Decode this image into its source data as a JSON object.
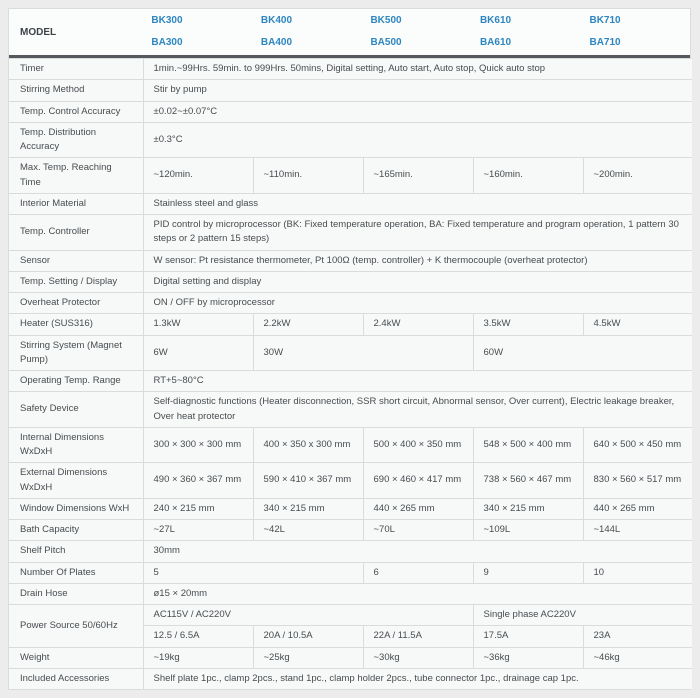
{
  "colors": {
    "accent_blue": "#2e86c1",
    "header_bottom_border": "#55585c",
    "cell_border": "#d9dcdc",
    "cell_background": "#f7f8f8",
    "page_background": "#ebeceb",
    "text": "#474d50"
  },
  "header": {
    "row_label": "MODEL",
    "models": [
      {
        "top": "BK300",
        "bottom": "BA300"
      },
      {
        "top": "BK400",
        "bottom": "BA400"
      },
      {
        "top": "BK500",
        "bottom": "BA500"
      },
      {
        "top": "BK610",
        "bottom": "BA610"
      },
      {
        "top": "BK710",
        "bottom": "BA710"
      }
    ]
  },
  "spec_rows": [
    {
      "label": "Timer",
      "cells": [
        {
          "text": "1min.~99Hrs. 59min. to 999Hrs. 50mins, Digital setting, Auto start, Auto stop, Quick auto stop",
          "span": 5
        }
      ]
    },
    {
      "label": "Stirring Method",
      "cells": [
        {
          "text": "Stir by pump",
          "span": 5
        }
      ]
    },
    {
      "label": "Temp. Control Accuracy",
      "cells": [
        {
          "text": "±0.02~±0.07°C",
          "span": 5
        }
      ]
    },
    {
      "label": "Temp. Distribution Accuracy",
      "cells": [
        {
          "text": "±0.3°C",
          "span": 5
        }
      ]
    },
    {
      "label": "Max. Temp. Reaching Time",
      "cells": [
        {
          "text": "~120min.",
          "span": 1
        },
        {
          "text": "~110min.",
          "span": 1
        },
        {
          "text": "~165min.",
          "span": 1
        },
        {
          "text": "~160min.",
          "span": 1
        },
        {
          "text": "~200min.",
          "span": 1
        }
      ]
    },
    {
      "label": "Interior Material",
      "cells": [
        {
          "text": "Stainless steel and glass",
          "span": 5
        }
      ]
    },
    {
      "label": "Temp. Controller",
      "cells": [
        {
          "text": "PID control by microprocessor (BK: Fixed temperature operation, BA: Fixed temperature and program operation, 1 pattern 30 steps or 2 pattern 15 steps)",
          "span": 5
        }
      ]
    },
    {
      "label": "Sensor",
      "cells": [
        {
          "text": "W sensor: Pt resistance thermometer, Pt 100Ω (temp. controller) + K thermocouple (overheat protector)",
          "span": 5
        }
      ]
    },
    {
      "label": "Temp. Setting / Display",
      "cells": [
        {
          "text": "Digital setting and display",
          "span": 5
        }
      ]
    },
    {
      "label": "Overheat Protector",
      "cells": [
        {
          "text": "ON / OFF by microprocessor",
          "span": 5
        }
      ]
    },
    {
      "label": "Heater (SUS316)",
      "cells": [
        {
          "text": "1.3kW",
          "span": 1
        },
        {
          "text": "2.2kW",
          "span": 1
        },
        {
          "text": "2.4kW",
          "span": 1
        },
        {
          "text": "3.5kW",
          "span": 1
        },
        {
          "text": "4.5kW",
          "span": 1
        }
      ]
    },
    {
      "label": "Stirring System (Magnet Pump)",
      "cells": [
        {
          "text": "6W",
          "span": 1
        },
        {
          "text": "30W",
          "span": 2
        },
        {
          "text": "60W",
          "span": 2
        }
      ]
    },
    {
      "label": "Operating Temp. Range",
      "cells": [
        {
          "text": "RT+5~80°C",
          "span": 5
        }
      ]
    },
    {
      "label": "Safety Device",
      "cells": [
        {
          "text": "Self-diagnostic functions (Heater disconnection, SSR short circuit, Abnormal sensor, Over current), Electric leakage breaker, Over heat protector",
          "span": 5
        }
      ]
    },
    {
      "label": "Internal Dimensions WxDxH",
      "cells": [
        {
          "text": "300 × 300 × 300 mm",
          "span": 1
        },
        {
          "text": "400 × 350 x 300 mm",
          "span": 1
        },
        {
          "text": "500 × 400 × 350 mm",
          "span": 1
        },
        {
          "text": "548 × 500 × 400 mm",
          "span": 1
        },
        {
          "text": "640 × 500 × 450 mm",
          "span": 1
        }
      ]
    },
    {
      "label": "External Dimensions WxDxH",
      "cells": [
        {
          "text": "490 × 360 × 367 mm",
          "span": 1
        },
        {
          "text": "590 × 410 × 367 mm",
          "span": 1
        },
        {
          "text": "690 × 460 × 417 mm",
          "span": 1
        },
        {
          "text": "738 × 560 × 467 mm",
          "span": 1
        },
        {
          "text": "830 × 560 × 517 mm",
          "span": 1
        }
      ]
    },
    {
      "label": "Window Dimensions WxH",
      "cells": [
        {
          "text": "240 × 215 mm",
          "span": 1
        },
        {
          "text": "340 × 215 mm",
          "span": 1
        },
        {
          "text": "440 × 265 mm",
          "span": 1
        },
        {
          "text": "340 × 215 mm",
          "span": 1
        },
        {
          "text": "440 × 265 mm",
          "span": 1
        }
      ]
    },
    {
      "label": "Bath Capacity",
      "cells": [
        {
          "text": "~27L",
          "span": 1
        },
        {
          "text": "~42L",
          "span": 1
        },
        {
          "text": "~70L",
          "span": 1
        },
        {
          "text": "~109L",
          "span": 1
        },
        {
          "text": "~144L",
          "span": 1
        }
      ]
    },
    {
      "label": "Shelf Pitch",
      "cells": [
        {
          "text": "30mm",
          "span": 5
        }
      ]
    },
    {
      "label": "Number Of Plates",
      "cells": [
        {
          "text": "5",
          "span": 2
        },
        {
          "text": "6",
          "span": 1
        },
        {
          "text": "9",
          "span": 1
        },
        {
          "text": "10",
          "span": 1
        }
      ]
    },
    {
      "label": "Drain Hose",
      "cells": [
        {
          "text": "ø15 × 20mm",
          "span": 5
        }
      ]
    },
    {
      "label": "Power Source 50/60Hz",
      "label_rowspan": 2,
      "cells": [
        {
          "text": "AC115V / AC220V",
          "span": 3
        },
        {
          "text": "Single phase AC220V",
          "span": 2
        }
      ]
    },
    {
      "label": null,
      "cells": [
        {
          "text": "12.5 / 6.5A",
          "span": 1
        },
        {
          "text": "20A / 10.5A",
          "span": 1
        },
        {
          "text": "22A / 11.5A",
          "span": 1
        },
        {
          "text": "17.5A",
          "span": 1
        },
        {
          "text": "23A",
          "span": 1
        }
      ]
    },
    {
      "label": "Weight",
      "cells": [
        {
          "text": "~19kg",
          "span": 1
        },
        {
          "text": "~25kg",
          "span": 1
        },
        {
          "text": "~30kg",
          "span": 1
        },
        {
          "text": "~36kg",
          "span": 1
        },
        {
          "text": "~46kg",
          "span": 1
        }
      ]
    },
    {
      "label": "Included Accessories",
      "cells": [
        {
          "text": "Shelf plate 1pc., clamp 2pcs., stand 1pc., clamp holder 2pcs., tube connector 1pc., drainage cap 1pc.",
          "span": 5
        }
      ]
    }
  ]
}
